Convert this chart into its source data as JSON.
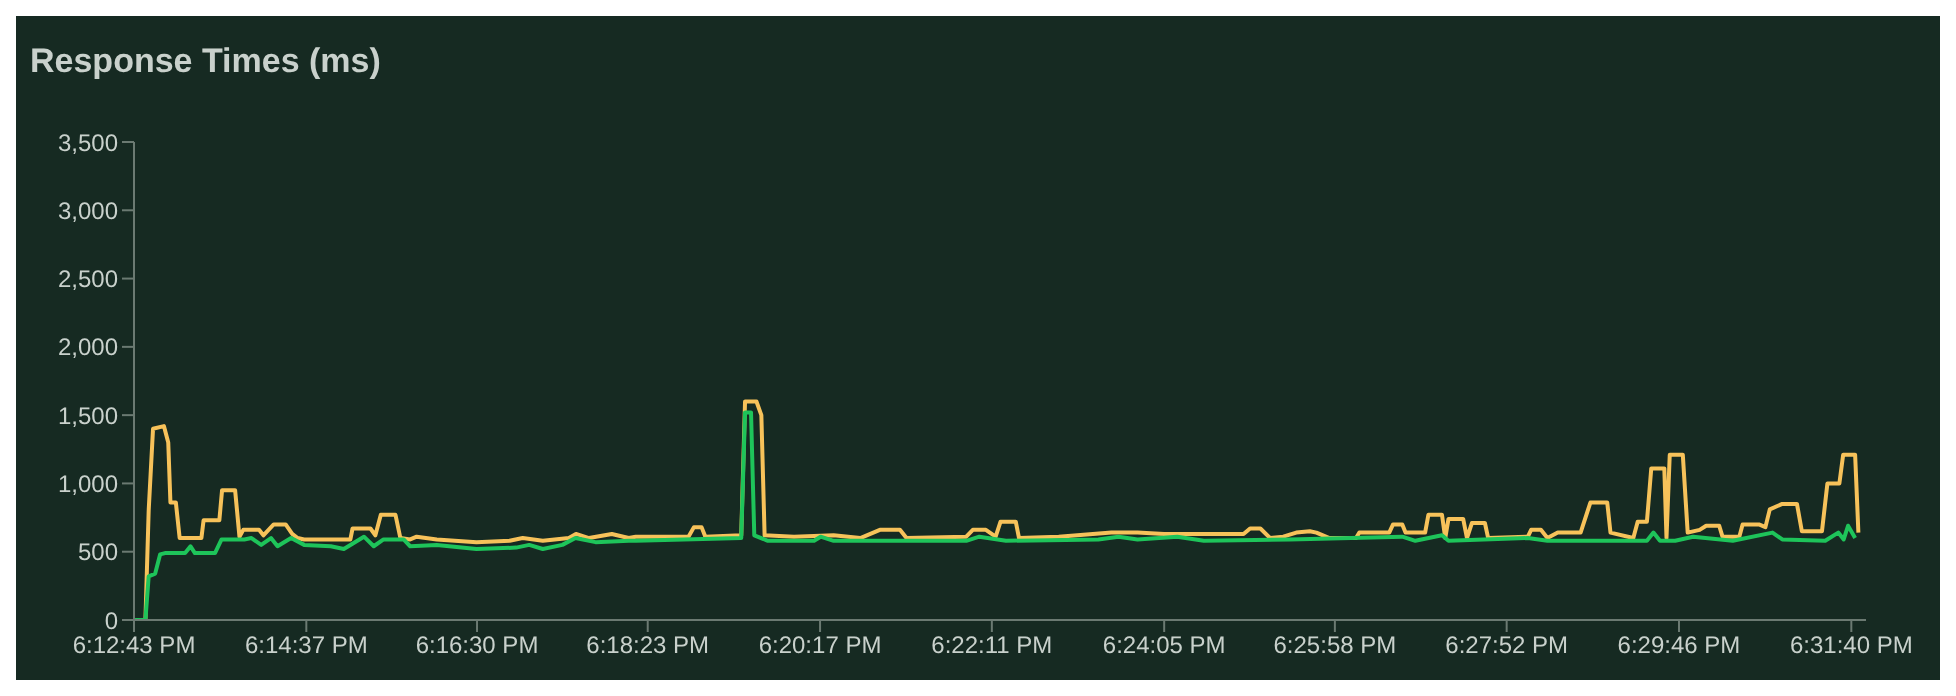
{
  "chart_data": {
    "type": "line",
    "title": "Response Times (ms)",
    "xlim": [
      18.2119,
      18.5305
    ],
    "xticks": [
      {
        "value": 18.2119,
        "label": "6:12:43 PM"
      },
      {
        "value": 18.2436,
        "label": "6:14:37 PM"
      },
      {
        "value": 18.275,
        "label": "6:16:30 PM"
      },
      {
        "value": 18.3064,
        "label": "6:18:23 PM"
      },
      {
        "value": 18.3381,
        "label": "6:20:17 PM"
      },
      {
        "value": 18.3697,
        "label": "6:22:11 PM"
      },
      {
        "value": 18.4014,
        "label": "6:24:05 PM"
      },
      {
        "value": 18.4328,
        "label": "6:25:58 PM"
      },
      {
        "value": 18.4644,
        "label": "6:27:52 PM"
      },
      {
        "value": 18.4961,
        "label": "6:29:46 PM"
      },
      {
        "value": 18.5278,
        "label": "6:31:40 PM"
      }
    ],
    "ylim": [
      0,
      3500
    ],
    "yticks": [
      0,
      500,
      {
        "value": 1000,
        "label": "1,000"
      },
      {
        "value": 1500,
        "label": "1,500"
      },
      {
        "value": 2000,
        "label": "2,000"
      },
      {
        "value": 2500,
        "label": "2,500"
      },
      {
        "value": 3000,
        "label": "3,000"
      },
      {
        "value": 3500,
        "label": "3,500"
      }
    ],
    "series": [
      {
        "color": "#f7c25a",
        "x": [
          18.2119,
          18.214,
          18.2146,
          18.2154,
          18.2174,
          18.2182,
          18.2186,
          18.2196,
          18.2203,
          18.2223,
          18.2243,
          18.2247,
          18.2276,
          18.2281,
          18.2305,
          18.2313,
          18.232,
          18.2349,
          18.2357,
          18.2376,
          18.2398,
          18.241,
          18.242,
          18.2432,
          18.2517,
          18.2521,
          18.2554,
          18.2563,
          18.2573,
          18.26,
          18.2609,
          18.2627,
          18.2639,
          18.2676,
          18.2749,
          18.281,
          18.2834,
          18.2871,
          18.2919,
          18.2932,
          18.2956,
          18.2998,
          18.3029,
          18.3042,
          18.3139,
          18.3149,
          18.3163,
          18.317,
          18.3236,
          18.3243,
          18.3264,
          18.3273,
          18.3279,
          18.3333,
          18.3406,
          18.3455,
          18.3491,
          18.3528,
          18.354,
          18.365,
          18.3662,
          18.3686,
          18.3704,
          18.3713,
          18.3741,
          18.3747,
          18.382,
          18.3917,
          18.3965,
          18.4014,
          18.416,
          18.4172,
          18.4191,
          18.4209,
          18.4233,
          18.4257,
          18.4282,
          18.4294,
          18.4318,
          18.4367,
          18.4373,
          18.4428,
          18.4435,
          18.4452,
          18.4458,
          18.4494,
          18.45,
          18.4525,
          18.4531,
          18.4537,
          18.4564,
          18.4571,
          18.458,
          18.4604,
          18.461,
          18.4683,
          18.4689,
          18.4707,
          18.4719,
          18.4738,
          18.478,
          18.4798,
          18.4829,
          18.4835,
          18.4877,
          18.4885,
          18.4902,
          18.491,
          18.4934,
          18.4938,
          18.4944,
          18.4968,
          18.4977,
          18.4999,
          18.5011,
          18.5035,
          18.5041,
          18.5072,
          18.5078,
          18.5108,
          18.512,
          18.5128,
          18.5151,
          18.5178,
          18.5187,
          18.5224,
          18.5234,
          18.5256,
          18.5263,
          18.5285,
          18.5291
        ],
        "values": [
          0,
          0,
          800,
          1400,
          1420,
          1300,
          860,
          860,
          600,
          600,
          600,
          730,
          730,
          950,
          950,
          610,
          660,
          660,
          620,
          700,
          700,
          630,
          600,
          590,
          590,
          670,
          670,
          620,
          770,
          770,
          600,
          590,
          610,
          590,
          570,
          580,
          600,
          580,
          600,
          630,
          600,
          630,
          600,
          610,
          610,
          680,
          680,
          610,
          620,
          1600,
          1600,
          1500,
          620,
          610,
          620,
          600,
          660,
          660,
          600,
          610,
          660,
          660,
          610,
          720,
          720,
          600,
          610,
          640,
          640,
          630,
          630,
          670,
          670,
          600,
          610,
          640,
          650,
          640,
          600,
          600,
          640,
          640,
          700,
          700,
          640,
          640,
          770,
          770,
          600,
          740,
          740,
          600,
          710,
          710,
          600,
          610,
          660,
          660,
          600,
          640,
          640,
          860,
          860,
          640,
          600,
          720,
          720,
          1110,
          1110,
          600,
          1210,
          1210,
          640,
          660,
          690,
          690,
          610,
          610,
          700,
          700,
          680,
          810,
          850,
          850,
          650,
          650,
          1000,
          1000,
          1210,
          1210,
          640
        ]
      },
      {
        "color": "#1ec45a",
        "x": [
          18.2119,
          18.214,
          18.2146,
          18.2158,
          18.2167,
          18.2176,
          18.2213,
          18.2223,
          18.2231,
          18.2268,
          18.228,
          18.2322,
          18.2335,
          18.2353,
          18.2371,
          18.2383,
          18.2408,
          18.2432,
          18.2481,
          18.2505,
          18.2542,
          18.256,
          18.2578,
          18.2615,
          18.2627,
          18.2676,
          18.2749,
          18.2822,
          18.2846,
          18.2871,
          18.2907,
          18.2931,
          18.2968,
          18.3029,
          18.3042,
          18.3236,
          18.3243,
          18.3254,
          18.326,
          18.3285,
          18.337,
          18.3382,
          18.3406,
          18.365,
          18.3674,
          18.3723,
          18.3893,
          18.393,
          18.3965,
          18.4038,
          18.4087,
          18.4245,
          18.4452,
          18.4476,
          18.4525,
          18.4537,
          18.4683,
          18.4719,
          18.4902,
          18.4914,
          18.4926,
          18.4954,
          18.4987,
          18.506,
          18.5133,
          18.5151,
          18.523,
          18.5254,
          18.5264,
          18.5272,
          18.5285
        ],
        "values": [
          0,
          0,
          320,
          340,
          480,
          490,
          490,
          540,
          490,
          490,
          590,
          590,
          600,
          550,
          600,
          540,
          600,
          550,
          540,
          520,
          610,
          540,
          590,
          590,
          540,
          550,
          520,
          530,
          550,
          520,
          550,
          600,
          570,
          580,
          580,
          600,
          1520,
          1520,
          620,
          580,
          580,
          610,
          580,
          580,
          610,
          580,
          590,
          610,
          590,
          610,
          580,
          590,
          610,
          580,
          620,
          580,
          600,
          580,
          580,
          640,
          580,
          580,
          610,
          580,
          640,
          590,
          580,
          640,
          590,
          690,
          600
        ]
      }
    ]
  }
}
